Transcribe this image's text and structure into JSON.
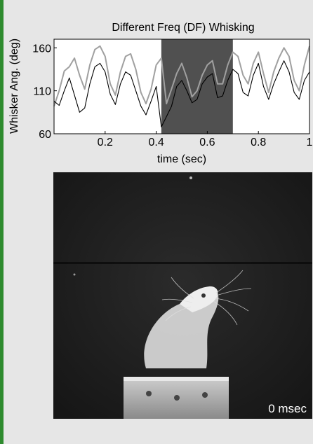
{
  "figure": {
    "video": {
      "timestamp": "0 msec"
    }
  },
  "chart_data": {
    "type": "line",
    "title": "Different Freq (DF) Whisking",
    "xlabel": "time (sec)",
    "ylabel": "Whisker Ang. (deg)",
    "xlim": [
      0,
      1
    ],
    "ylim": [
      60,
      170
    ],
    "xticks": [
      "0.2",
      "0.4",
      "0.6",
      "0.8",
      "1"
    ],
    "xtick_values": [
      0.2,
      0.4,
      0.6,
      0.8,
      1.0
    ],
    "yticks": [
      "60",
      "110",
      "160"
    ],
    "ytick_values": [
      60,
      110,
      160
    ],
    "grid": false,
    "highlight": {
      "x_start": 0.42,
      "x_end": 0.7,
      "color": "#505050"
    },
    "series": [
      {
        "color": "#a0a0a0",
        "x": [
          0.0,
          0.02,
          0.04,
          0.06,
          0.08,
          0.1,
          0.12,
          0.14,
          0.16,
          0.18,
          0.2,
          0.22,
          0.24,
          0.26,
          0.28,
          0.3,
          0.32,
          0.34,
          0.36,
          0.38,
          0.4,
          0.42,
          0.44,
          0.46,
          0.48,
          0.5,
          0.52,
          0.54,
          0.56,
          0.58,
          0.6,
          0.62,
          0.64,
          0.66,
          0.68,
          0.7,
          0.72,
          0.74,
          0.76,
          0.78,
          0.8,
          0.82,
          0.84,
          0.86,
          0.88,
          0.9,
          0.92,
          0.94,
          0.96,
          0.98,
          1.0
        ],
        "y": [
          92,
          110,
          133,
          138,
          148,
          128,
          112,
          140,
          158,
          162,
          150,
          118,
          105,
          132,
          150,
          153,
          135,
          108,
          95,
          112,
          140,
          148,
          95,
          112,
          130,
          142,
          125,
          103,
          110,
          128,
          140,
          145,
          118,
          118,
          140,
          155,
          150,
          128,
          118,
          142,
          155,
          130,
          108,
          132,
          148,
          160,
          150,
          122,
          110,
          140,
          162
        ]
      },
      {
        "color": "#000000",
        "x": [
          0.0,
          0.02,
          0.04,
          0.06,
          0.08,
          0.1,
          0.12,
          0.14,
          0.16,
          0.18,
          0.2,
          0.22,
          0.24,
          0.26,
          0.28,
          0.3,
          0.32,
          0.34,
          0.36,
          0.38,
          0.4,
          0.42,
          0.44,
          0.46,
          0.48,
          0.5,
          0.52,
          0.54,
          0.56,
          0.58,
          0.6,
          0.62,
          0.64,
          0.66,
          0.68,
          0.7,
          0.72,
          0.74,
          0.76,
          0.78,
          0.8,
          0.82,
          0.84,
          0.86,
          0.88,
          0.9,
          0.92,
          0.94,
          0.96,
          0.98,
          1.0
        ],
        "y": [
          98,
          93,
          110,
          125,
          105,
          85,
          90,
          118,
          138,
          142,
          132,
          106,
          94,
          118,
          132,
          128,
          110,
          92,
          82,
          98,
          115,
          68,
          80,
          92,
          115,
          122,
          110,
          96,
          100,
          118,
          126,
          130,
          102,
          104,
          122,
          135,
          130,
          108,
          104,
          128,
          142,
          115,
          100,
          118,
          132,
          145,
          132,
          108,
          100,
          122,
          132
        ]
      }
    ]
  }
}
